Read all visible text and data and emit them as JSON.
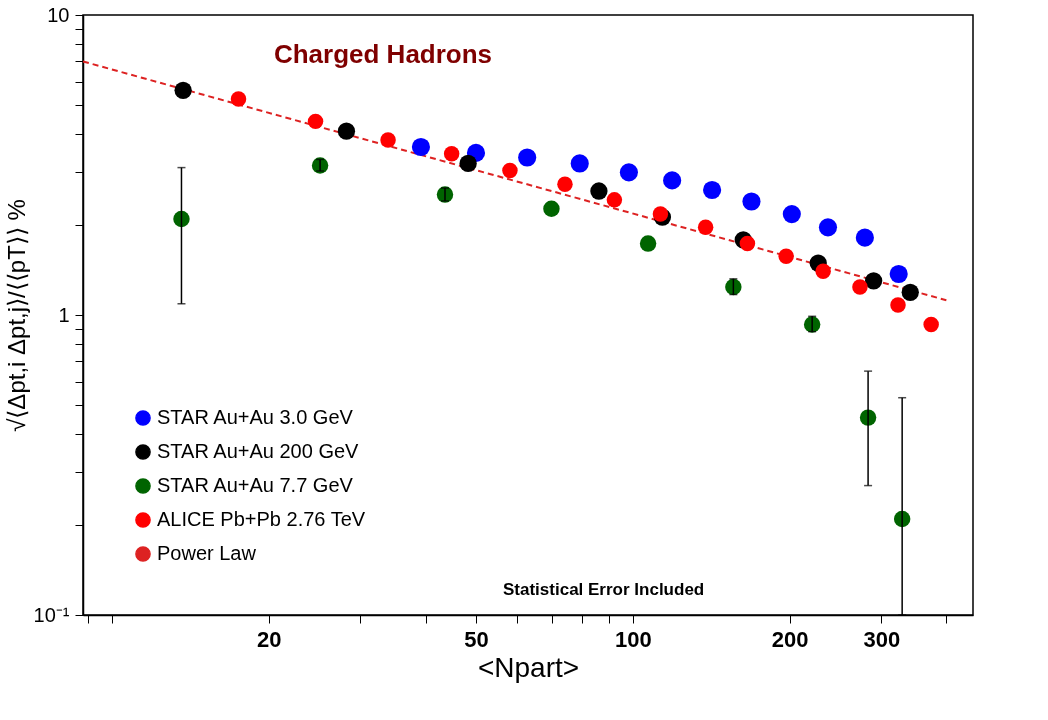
{
  "chart_data": {
    "type": "scatter",
    "title": "Charged Hadrons",
    "xlabel": "<Npart>",
    "ylabel": "√⟨Δpt,i Δpt,j⟩/⟨⟨pT⟩⟩ %",
    "annotations": [
      "Statistical Error Included"
    ],
    "log": "xy",
    "marker": "circle",
    "legend": "bottom left",
    "grid": false,
    "xlim": [
      8.8,
      450
    ],
    "ylim": [
      0.1,
      10
    ],
    "xticks": [
      {
        "value": 9,
        "label": null
      },
      {
        "value": 10,
        "label": null
      },
      20,
      {
        "value": 30,
        "label": null
      },
      {
        "value": 40,
        "label": null
      },
      50,
      {
        "value": 60,
        "label": null
      },
      {
        "value": 70,
        "label": null
      },
      {
        "value": 80,
        "label": null
      },
      {
        "value": 90,
        "label": null
      },
      100,
      200,
      300,
      {
        "value": 400,
        "label": null
      }
    ],
    "yticks": [
      {
        "value": 0.1,
        "label": "10⁻¹"
      },
      {
        "value": 0.2,
        "label": null
      },
      {
        "value": 0.3,
        "label": null
      },
      {
        "value": 0.4,
        "label": null
      },
      {
        "value": 0.5,
        "label": null
      },
      {
        "value": 0.6,
        "label": null
      },
      {
        "value": 0.7,
        "label": null
      },
      {
        "value": 0.8,
        "label": null
      },
      {
        "value": 0.9,
        "label": null
      },
      1,
      {
        "value": 2,
        "label": null
      },
      {
        "value": 3,
        "label": null
      },
      {
        "value": 4,
        "label": null
      },
      {
        "value": 5,
        "label": null
      },
      {
        "value": 6,
        "label": null
      },
      {
        "value": 7,
        "label": null
      },
      {
        "value": 8,
        "label": null
      },
      {
        "value": 9,
        "label": null
      },
      10
    ],
    "series": [
      {
        "name": "STAR Au+Au 3.0 GeV",
        "color": "#0000ff",
        "x": [
          39.2,
          50.0,
          62.7,
          79.1,
          98.3,
          119,
          142,
          169,
          202,
          237,
          279,
          324
        ],
        "values": [
          3.63,
          3.47,
          3.35,
          3.2,
          2.99,
          2.81,
          2.61,
          2.39,
          2.17,
          1.96,
          1.81,
          1.37
        ]
      },
      {
        "name": "STAR Au+Au 200 GeV",
        "color": "#000000",
        "x": [
          13.7,
          28.2,
          48.3,
          86.1,
          114,
          163,
          227,
          290,
          341
        ],
        "values": [
          5.61,
          4.1,
          3.2,
          2.59,
          2.12,
          1.78,
          1.49,
          1.3,
          1.19
        ]
      },
      {
        "name": "STAR Au+Au 7.7 GeV",
        "color": "#006400",
        "x": [
          13.6,
          25.1,
          43.6,
          69.8,
          107,
          156,
          221,
          283,
          329
        ],
        "values": [
          2.09,
          3.15,
          2.52,
          2.26,
          1.73,
          1.24,
          0.93,
          0.455,
          0.209
        ],
        "errors": [
          [
            1.09,
            3.1
          ],
          [
            3.02,
            3.3
          ],
          [
            2.4,
            2.65
          ],
          null,
          null,
          [
            1.17,
            1.32
          ],
          [
            0.88,
            0.99
          ],
          [
            0.27,
            0.65
          ],
          [
            0.1,
            0.53
          ]
        ]
      },
      {
        "name": "ALICE Pb+Pb 2.76 TeV",
        "color": "#ff0000",
        "x": [
          17.5,
          24.6,
          33.9,
          44.9,
          58.1,
          74.1,
          92.2,
          113,
          138,
          166,
          197,
          232,
          273,
          323,
          374
        ],
        "values": [
          5.25,
          4.42,
          3.83,
          3.45,
          3.03,
          2.73,
          2.42,
          2.17,
          1.96,
          1.73,
          1.57,
          1.4,
          1.24,
          1.08,
          0.93
        ]
      },
      {
        "name": "Power Law",
        "type": "line",
        "line_style": "dashed",
        "marker": "none",
        "color": "#dd2222",
        "x": [
          8.8,
          400
        ],
        "values": [
          7.0,
          1.12
        ]
      }
    ]
  }
}
